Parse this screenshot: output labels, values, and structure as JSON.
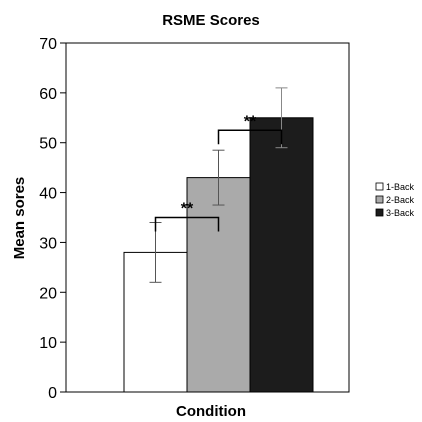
{
  "chart_data": {
    "type": "bar",
    "title": "RSME Scores",
    "xlabel": "Condition",
    "ylabel": "Mean sores",
    "ylim": [
      0,
      70
    ],
    "yticks": [
      "0",
      "10",
      "20",
      "30",
      "40",
      "50",
      "60",
      "70"
    ],
    "grid": false,
    "legend_position": "right",
    "series": [
      {
        "name": "1-Back",
        "value": 28,
        "error": 6,
        "color": "#ffffff"
      },
      {
        "name": "2-Back",
        "value": 43,
        "error": 5.5,
        "color": "#aaaaaa"
      },
      {
        "name": "3-Back",
        "value": 55,
        "error": 6,
        "color": "#1c1c1c"
      }
    ],
    "significance": [
      {
        "from": "1-Back",
        "to": "2-Back",
        "label": "**",
        "level": 35
      },
      {
        "from": "2-Back",
        "to": "3-Back",
        "label": "**",
        "level": 52.5
      }
    ]
  }
}
